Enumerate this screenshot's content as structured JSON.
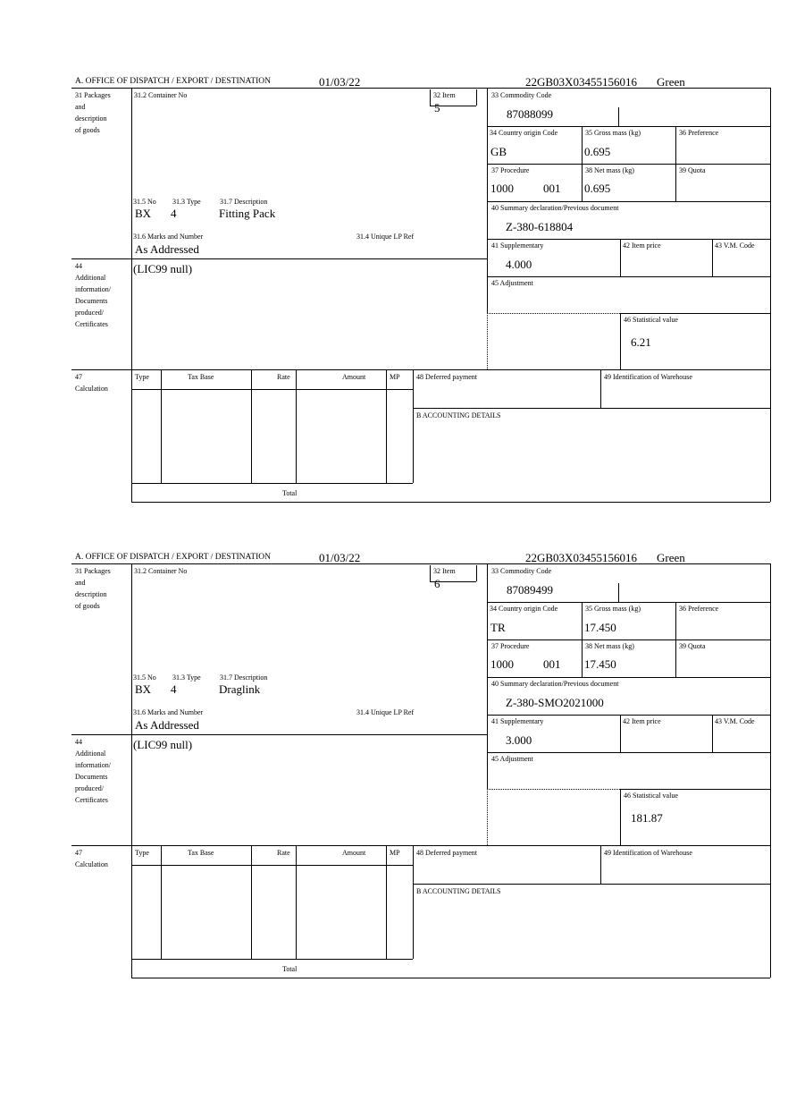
{
  "blocks": [
    {
      "header": {
        "office": "A. OFFICE OF DISPATCH / EXPORT / DESTINATION",
        "date": "01/03/22",
        "reference": "22GB03X03455156016",
        "route": "Green"
      },
      "labels": {
        "packages": [
          "31 Packages",
          "and",
          "description",
          "of goods"
        ],
        "container": "31.2 Container No",
        "item": "32 Item",
        "no": "31.5 No",
        "type": "31.3 Type",
        "description": "31.7 Description",
        "marks": "31.6 Marks and Number",
        "unique_ref": "31.4 Unique LP Ref",
        "additional": [
          "44",
          "Additional",
          "information/",
          "Documents",
          "produced/",
          "Certificates"
        ],
        "commodity": "33 Commodity Code",
        "country": "34 Country origin Code",
        "gross": "35 Gross mass (kg)",
        "preference": "36 Preference",
        "procedure": "37 Procedure",
        "net": "38 Net mass (kg)",
        "quota": "39 Quota",
        "summary": "40 Summary declaration/Previous document",
        "supplementary": "41 Supplementary",
        "item_price": "42 Item price",
        "vm_code": "43 V.M. Code",
        "adjustment": "45 Adjustment",
        "statistical": "46 Statistical value",
        "calculation": [
          "47",
          "Calculation"
        ],
        "calc_cols": [
          "Type",
          "Tax Base",
          "Rate",
          "Amount",
          "MP"
        ],
        "total": "Total",
        "deferred": "48 Deferred payment",
        "warehouse": "49 Identification of Warehouse",
        "accounting": "B ACCOUNTING DETAILS"
      },
      "values": {
        "item": "5",
        "no": "BX",
        "type": "4",
        "description": "Fitting Pack",
        "marks": "As Addressed",
        "additional": "(LIC99 null)",
        "commodity": "87088099",
        "country": "GB",
        "gross": "0.695",
        "procedure": "1000",
        "procedure_add": "001",
        "net": "0.695",
        "summary": "Z-380-618804",
        "supplementary": "4.000",
        "statistical": "6.21"
      }
    },
    {
      "header": {
        "office": "A. OFFICE OF DISPATCH / EXPORT / DESTINATION",
        "date": "01/03/22",
        "reference": "22GB03X03455156016",
        "route": "Green"
      },
      "labels": {
        "packages": [
          "31 Packages",
          "and",
          "description",
          "of goods"
        ],
        "container": "31.2 Container No",
        "item": "32 Item",
        "no": "31.5 No",
        "type": "31.3 Type",
        "description": "31.7 Description",
        "marks": "31.6 Marks and Number",
        "unique_ref": "31.4 Unique LP Ref",
        "additional": [
          "44",
          "Additional",
          "information/",
          "Documents",
          "produced/",
          "Certificates"
        ],
        "commodity": "33 Commodity Code",
        "country": "34 Country origin Code",
        "gross": "35 Gross mass (kg)",
        "preference": "36 Preference",
        "procedure": "37 Procedure",
        "net": "38 Net mass (kg)",
        "quota": "39 Quota",
        "summary": "40 Summary declaration/Previous document",
        "supplementary": "41 Supplementary",
        "item_price": "42 Item price",
        "vm_code": "43 V.M. Code",
        "adjustment": "45 Adjustment",
        "statistical": "46 Statistical value",
        "calculation": [
          "47",
          "Calculation"
        ],
        "calc_cols": [
          "Type",
          "Tax Base",
          "Rate",
          "Amount",
          "MP"
        ],
        "total": "Total",
        "deferred": "48 Deferred payment",
        "warehouse": "49 Identification of Warehouse",
        "accounting": "B ACCOUNTING DETAILS"
      },
      "values": {
        "item": "6",
        "no": "BX",
        "type": "4",
        "description": "Draglink",
        "marks": "As Addressed",
        "additional": "(LIC99 null)",
        "commodity": "87089499",
        "country": "TR",
        "gross": "17.450",
        "procedure": "1000",
        "procedure_add": "001",
        "net": "17.450",
        "summary": "Z-380-SMO2021000",
        "supplementary": "3.000",
        "statistical": "181.87"
      }
    }
  ]
}
